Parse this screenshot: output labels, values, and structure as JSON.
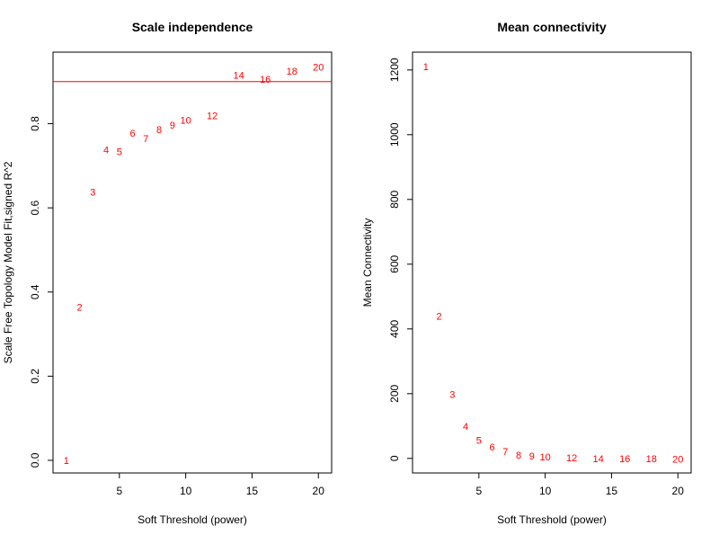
{
  "colors": {
    "point": "#ff0000",
    "reference_line": "#ff0000",
    "axis": "#000000",
    "background": "#ffffff"
  },
  "chart_data": [
    {
      "type": "scatter",
      "title": "Scale independence",
      "xlabel": "Soft Threshold (power)",
      "ylabel": "Scale Free Topology Model Fit,signed R^2",
      "xlim": [
        0,
        21
      ],
      "ylim": [
        -0.03,
        0.97
      ],
      "x_ticks": [
        5,
        10,
        15,
        20
      ],
      "y_ticks": [
        0.0,
        0.2,
        0.4,
        0.6,
        0.8
      ],
      "y_tick_labels": [
        "0.0",
        "0.2",
        "0.4",
        "0.6",
        "0.8"
      ],
      "marker": "text-label",
      "hline": 0.9,
      "grid": false,
      "points": [
        {
          "x": 1,
          "y": 0.0,
          "label": "1"
        },
        {
          "x": 2,
          "y": 0.364,
          "label": "2"
        },
        {
          "x": 3,
          "y": 0.638,
          "label": "3"
        },
        {
          "x": 4,
          "y": 0.738,
          "label": "4"
        },
        {
          "x": 5,
          "y": 0.734,
          "label": "5"
        },
        {
          "x": 6,
          "y": 0.778,
          "label": "6"
        },
        {
          "x": 7,
          "y": 0.765,
          "label": "7"
        },
        {
          "x": 8,
          "y": 0.786,
          "label": "8"
        },
        {
          "x": 9,
          "y": 0.797,
          "label": "9"
        },
        {
          "x": 10,
          "y": 0.809,
          "label": "10"
        },
        {
          "x": 12,
          "y": 0.819,
          "label": "12"
        },
        {
          "x": 14,
          "y": 0.915,
          "label": "14"
        },
        {
          "x": 16,
          "y": 0.906,
          "label": "16"
        },
        {
          "x": 18,
          "y": 0.925,
          "label": "18"
        },
        {
          "x": 20,
          "y": 0.935,
          "label": "20"
        }
      ]
    },
    {
      "type": "scatter",
      "title": "Mean connectivity",
      "xlabel": "Soft Threshold (power)",
      "ylabel": "Mean Connectivity",
      "xlim": [
        0,
        21
      ],
      "ylim": [
        -45,
        1255
      ],
      "x_ticks": [
        5,
        10,
        15,
        20
      ],
      "y_ticks": [
        0,
        200,
        400,
        600,
        800,
        1000,
        1200
      ],
      "y_tick_labels": [
        "0",
        "200",
        "400",
        "600",
        "800",
        "1000",
        "1200"
      ],
      "marker": "text-label",
      "grid": false,
      "points": [
        {
          "x": 1,
          "y": 1210,
          "label": "1"
        },
        {
          "x": 2,
          "y": 440,
          "label": "2"
        },
        {
          "x": 3,
          "y": 198,
          "label": "3"
        },
        {
          "x": 4,
          "y": 100,
          "label": "4"
        },
        {
          "x": 5,
          "y": 56,
          "label": "5"
        },
        {
          "x": 6,
          "y": 36,
          "label": "6"
        },
        {
          "x": 7,
          "y": 22,
          "label": "7"
        },
        {
          "x": 8,
          "y": 11,
          "label": "8"
        },
        {
          "x": 9,
          "y": 8,
          "label": "9"
        },
        {
          "x": 10,
          "y": 5,
          "label": "10"
        },
        {
          "x": 12,
          "y": 2,
          "label": "12"
        },
        {
          "x": 14,
          "y": 0,
          "label": "14"
        },
        {
          "x": 16,
          "y": 0,
          "label": "16"
        },
        {
          "x": 18,
          "y": 0,
          "label": "18"
        },
        {
          "x": 20,
          "y": -2,
          "label": "20"
        }
      ]
    }
  ]
}
